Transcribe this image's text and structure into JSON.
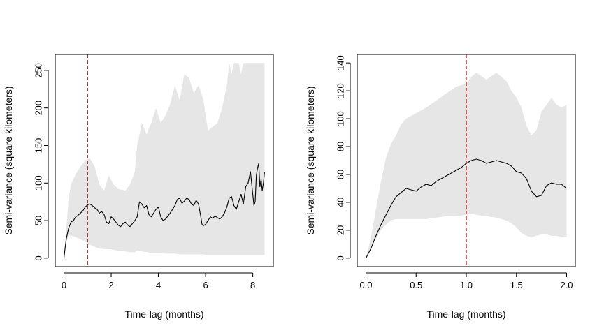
{
  "chart_data": [
    {
      "type": "line",
      "xlabel": "Time-lag (months)",
      "ylabel": "Semi-variance (square kilometers)",
      "xlim": [
        0,
        8.5
      ],
      "ylim": [
        0,
        260
      ],
      "xticks": [
        "0",
        "2",
        "4",
        "6",
        "8"
      ],
      "yticks": [
        "0",
        "50",
        "100",
        "150",
        "200",
        "250"
      ],
      "grid": false,
      "reference_line": {
        "x": 1.0,
        "color": "#cc0000",
        "style": "dashed"
      },
      "band_color": "#e6e6e6",
      "line_color": "#000000",
      "band": {
        "x": [
          0,
          0.1,
          0.2,
          0.3,
          0.5,
          0.7,
          0.9,
          1.1,
          1.3,
          1.5,
          1.7,
          1.9,
          2.1,
          2.3,
          2.6,
          2.8,
          3.0,
          3.1,
          3.3,
          3.5,
          3.7,
          3.9,
          4.1,
          4.3,
          4.5,
          4.7,
          4.9,
          5.1,
          5.3,
          5.5,
          5.7,
          5.9,
          6.1,
          6.3,
          6.5,
          6.7,
          6.9,
          7.0,
          7.1,
          7.2,
          7.4,
          7.5,
          7.6,
          7.8,
          8.0,
          8.2,
          8.4,
          8.5
        ],
        "upper": [
          0,
          40,
          80,
          98,
          112,
          122,
          130,
          133,
          122,
          98,
          90,
          110,
          98,
          92,
          90,
          98,
          115,
          150,
          180,
          165,
          180,
          200,
          180,
          190,
          205,
          230,
          210,
          245,
          240,
          220,
          230,
          212,
          170,
          175,
          180,
          200,
          230,
          260,
          245,
          260,
          260,
          245,
          260,
          260,
          260,
          260,
          260,
          260
        ],
        "lower": [
          0,
          22,
          30,
          30,
          28,
          25,
          22,
          18,
          15,
          13,
          12,
          12,
          11,
          10,
          9,
          8,
          8,
          10,
          9,
          8,
          7,
          7,
          7,
          6,
          6,
          6,
          5,
          5,
          5,
          5,
          5,
          5,
          4,
          4,
          4,
          4,
          4,
          4,
          4,
          4,
          4,
          4,
          4,
          4,
          4,
          4,
          4,
          4
        ]
      },
      "series": [
        {
          "x": [
            0,
            0.05,
            0.1,
            0.2,
            0.3,
            0.4,
            0.5,
            0.6,
            0.7,
            0.8,
            0.9,
            1.0,
            1.1,
            1.2,
            1.3,
            1.4,
            1.5,
            1.6,
            1.7,
            1.8,
            1.9,
            2.0,
            2.1,
            2.2,
            2.3,
            2.4,
            2.5,
            2.6,
            2.7,
            2.8,
            2.9,
            3.0,
            3.1,
            3.2,
            3.3,
            3.4,
            3.5,
            3.6,
            3.7,
            3.8,
            3.9,
            4.0,
            4.1,
            4.2,
            4.3,
            4.4,
            4.5,
            4.6,
            4.7,
            4.8,
            4.9,
            5.0,
            5.1,
            5.2,
            5.3,
            5.4,
            5.5,
            5.6,
            5.7,
            5.8,
            5.85,
            5.9,
            6.0,
            6.1,
            6.2,
            6.3,
            6.4,
            6.5,
            6.6,
            6.7,
            6.8,
            6.9,
            7.0,
            7.1,
            7.2,
            7.3,
            7.4,
            7.5,
            7.6,
            7.7,
            7.8,
            7.9,
            8.0,
            8.05,
            8.1,
            8.15,
            8.2,
            8.25,
            8.3,
            8.35,
            8.4,
            8.45,
            8.5
          ],
          "values": [
            0,
            14,
            26,
            40,
            48,
            50,
            55,
            57,
            60,
            63,
            68,
            71,
            72,
            70,
            67,
            65,
            60,
            62,
            58,
            48,
            46,
            55,
            52,
            48,
            44,
            42,
            46,
            48,
            44,
            42,
            46,
            50,
            55,
            75,
            72,
            67,
            70,
            58,
            55,
            60,
            65,
            68,
            55,
            50,
            52,
            56,
            60,
            65,
            70,
            78,
            80,
            73,
            76,
            80,
            78,
            72,
            70,
            77,
            72,
            55,
            45,
            43,
            45,
            50,
            55,
            53,
            56,
            54,
            52,
            55,
            60,
            68,
            80,
            82,
            70,
            65,
            75,
            85,
            72,
            95,
            100,
            115,
            85,
            70,
            75,
            110,
            120,
            126,
            95,
            105,
            90,
            100,
            115
          ]
        }
      ]
    },
    {
      "type": "line",
      "xlabel": "Time-lag (months)",
      "ylabel": "Semi-variance (square kilometers)",
      "xlim": [
        0,
        2.0
      ],
      "ylim": [
        0,
        140
      ],
      "xticks": [
        "0.0",
        "0.5",
        "1.0",
        "1.5",
        "2.0"
      ],
      "yticks": [
        "0",
        "20",
        "40",
        "60",
        "80",
        "100",
        "120",
        "140"
      ],
      "grid": false,
      "reference_line": {
        "x": 1.0,
        "color": "#cc0000",
        "style": "dashed"
      },
      "band_color": "#e6e6e6",
      "line_color": "#000000",
      "band": {
        "x": [
          0,
          0.05,
          0.1,
          0.15,
          0.2,
          0.25,
          0.3,
          0.35,
          0.4,
          0.5,
          0.6,
          0.7,
          0.8,
          0.9,
          1.0,
          1.05,
          1.1,
          1.2,
          1.3,
          1.4,
          1.45,
          1.5,
          1.55,
          1.6,
          1.65,
          1.7,
          1.75,
          1.8,
          1.85,
          1.9,
          1.95,
          2.0
        ],
        "upper": [
          0,
          15,
          35,
          55,
          72,
          82,
          88,
          96,
          100,
          104,
          108,
          113,
          118,
          123,
          125,
          130,
          133,
          128,
          133,
          127,
          120,
          115,
          108,
          95,
          88,
          92,
          105,
          110,
          115,
          110,
          108,
          110
        ],
        "lower": [
          0,
          8,
          14,
          20,
          24,
          27,
          28,
          28,
          28,
          28,
          28,
          29,
          30,
          30,
          31,
          32,
          31,
          30,
          29,
          27,
          25,
          22,
          18,
          16,
          15,
          16,
          17,
          17,
          16,
          16,
          15,
          15
        ]
      },
      "series": [
        {
          "x": [
            0,
            0.05,
            0.1,
            0.15,
            0.2,
            0.25,
            0.3,
            0.35,
            0.4,
            0.45,
            0.5,
            0.55,
            0.6,
            0.65,
            0.7,
            0.75,
            0.8,
            0.85,
            0.9,
            0.95,
            1.0,
            1.05,
            1.1,
            1.15,
            1.2,
            1.25,
            1.3,
            1.35,
            1.4,
            1.45,
            1.5,
            1.55,
            1.6,
            1.65,
            1.7,
            1.75,
            1.8,
            1.85,
            1.9,
            1.95,
            2.0
          ],
          "values": [
            0,
            7,
            16,
            24,
            31,
            38,
            44,
            47,
            50,
            49,
            48,
            51,
            53,
            52,
            55,
            57,
            59,
            61,
            63,
            65,
            68,
            70,
            71,
            70,
            68,
            69,
            70,
            69,
            68,
            66,
            62,
            61,
            57,
            48,
            44,
            45,
            52,
            54,
            53,
            53,
            50
          ]
        }
      ]
    }
  ]
}
